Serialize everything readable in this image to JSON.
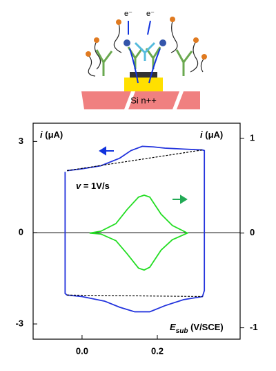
{
  "schematic": {
    "electron_labels": [
      "e⁻",
      "e⁻"
    ],
    "substrate": "Si n++"
  },
  "chart_data": {
    "type": "line",
    "ylabel_parts": [
      "i",
      " (μA)"
    ],
    "y2label_parts": [
      "i",
      " (μA)"
    ],
    "xlabel_parts": [
      "E",
      "sub",
      " (V/SCE)"
    ],
    "annotation_parts": [
      "v",
      " = 1V/s"
    ],
    "xlim": [
      -0.13,
      0.42
    ],
    "xticks": [
      {
        "value": 0.0,
        "label": "0.0"
      },
      {
        "value": 0.2,
        "label": "0.2"
      }
    ],
    "ylim": [
      -3.5,
      3.6
    ],
    "yticks": [
      -3,
      0,
      3
    ],
    "y2lim": [
      -1.12,
      1.16
    ],
    "y2ticks": [
      -1,
      0,
      1
    ],
    "series": [
      {
        "color": "#2233dd",
        "axis": "y",
        "style": "solid",
        "x": [
          -0.04,
          0.0,
          0.05,
          0.1,
          0.13,
          0.16,
          0.19,
          0.22,
          0.27,
          0.32,
          0.325,
          0.325,
          0.32,
          0.27,
          0.22,
          0.18,
          0.14,
          0.1,
          0.06,
          0.0,
          -0.04,
          -0.045,
          -0.045
        ],
        "values": [
          2.04,
          2.1,
          2.2,
          2.45,
          2.7,
          2.84,
          2.82,
          2.78,
          2.75,
          2.72,
          2.7,
          -1.9,
          -2.1,
          -2.2,
          -2.4,
          -2.6,
          -2.6,
          -2.45,
          -2.25,
          -2.1,
          -2.05,
          -2.0,
          2.0
        ]
      },
      {
        "color": "#000000",
        "axis": "y",
        "style": "dashed",
        "x": [
          -0.04,
          0.32
        ],
        "values": [
          2.04,
          2.72
        ]
      },
      {
        "color": "#000000",
        "axis": "y",
        "style": "dashed",
        "x": [
          -0.04,
          0.32
        ],
        "values": [
          -2.05,
          -2.1
        ]
      },
      {
        "color": "#22dd22",
        "axis": "y2",
        "style": "solid",
        "x": [
          0.02,
          0.05,
          0.09,
          0.12,
          0.15,
          0.165,
          0.18,
          0.21,
          0.24,
          0.28,
          0.24,
          0.21,
          0.18,
          0.165,
          0.15,
          0.12,
          0.09,
          0.05,
          0.02
        ],
        "values": [
          0,
          0.02,
          0.1,
          0.25,
          0.38,
          0.4,
          0.38,
          0.2,
          0.08,
          0,
          -0.07,
          -0.18,
          -0.36,
          -0.39,
          -0.37,
          -0.22,
          -0.08,
          -0.01,
          0
        ]
      }
    ]
  }
}
